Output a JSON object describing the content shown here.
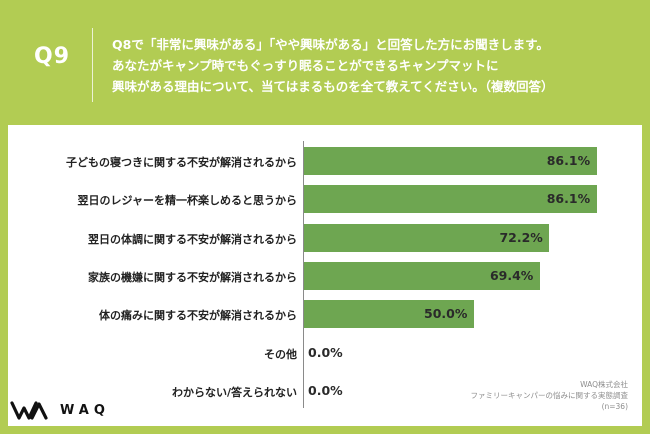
{
  "question": {
    "number": "Q9",
    "lines": [
      "Q8で「非常に興味がある」「やや興味がある」と回答した方にお聞きします。",
      "あなたがキャンプ時でもぐっすり眠ることができるキャンプマットに",
      "興味がある理由について、当てはまるものを全て教えてください。（複数回答）"
    ]
  },
  "chart_data": {
    "type": "bar",
    "orientation": "horizontal",
    "categories": [
      "子どもの寝つきに関する不安が解消されるから",
      "翌日のレジャーを精一杯楽しめると思うから",
      "翌日の体調に関する不安が解消されるから",
      "家族の機嫌に関する不安が解消されるから",
      "体の痛みに関する不安が解消されるから",
      "その他",
      "わからない/答えられない"
    ],
    "values": [
      86.1,
      86.1,
      72.2,
      69.4,
      50.0,
      0.0,
      0.0
    ],
    "value_labels": [
      "86.1%",
      "86.1%",
      "72.2%",
      "69.4%",
      "50.0%",
      "0.0%",
      "0.0%"
    ],
    "xlim": [
      0,
      100
    ],
    "bar_color": "#6ea651",
    "grid": false
  },
  "source": {
    "lines": [
      "WAQ株式会社",
      "ファミリーキャンパーの悩みに関する実態調査",
      "(n=36)"
    ]
  },
  "logo": {
    "text": "WAQ"
  },
  "colors": {
    "background": "#b2cc53",
    "panel": "#ffffff",
    "bar": "#6ea651"
  }
}
